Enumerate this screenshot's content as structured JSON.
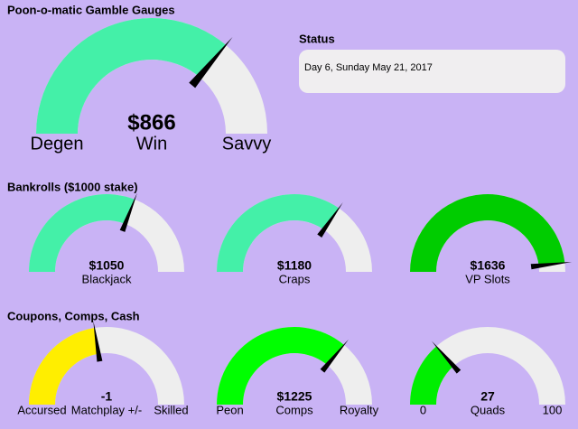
{
  "title": "Poon-o-matic Gamble Gauges",
  "main_gauge": {
    "value": 866,
    "value_label": "$866",
    "range": [
      0,
      1200
    ],
    "color": "#44f0a8",
    "left_label": "Degen",
    "center_label": "Win",
    "right_label": "Savvy"
  },
  "status": {
    "title": "Status",
    "text": "Day 6, Sunday May 21, 2017"
  },
  "bankrolls": {
    "title": "Bankrolls ($1000 stake)",
    "gauges": [
      {
        "value": 1050,
        "value_label": "$1050",
        "range": [
          0,
          1700
        ],
        "color": "#44f0a8",
        "center_label": "Blackjack"
      },
      {
        "value": 1180,
        "value_label": "$1180",
        "range": [
          0,
          1700
        ],
        "color": "#44f0a8",
        "center_label": "Craps"
      },
      {
        "value": 1636,
        "value_label": "$1636",
        "range": [
          0,
          1700
        ],
        "color": "#00cc00",
        "center_label": "VP Slots"
      }
    ]
  },
  "coupons": {
    "title": "Coupons, Comps, Cash",
    "gauges": [
      {
        "value": -1,
        "range": [
          -10,
          10
        ],
        "color": "#ffee00",
        "left_label": "Accursed",
        "center_label": "Matchplay +/-",
        "right_label": "Skilled"
      },
      {
        "value": 1225,
        "value_label": "$1225",
        "range": [
          0,
          1700
        ],
        "color": "#00ff00",
        "left_label": "Peon",
        "center_label": "Comps",
        "right_label": "Royalty"
      },
      {
        "value": 27,
        "range": [
          0,
          100
        ],
        "color": "#00ee00",
        "center_label": "Quads",
        "show_range": true
      }
    ]
  }
}
